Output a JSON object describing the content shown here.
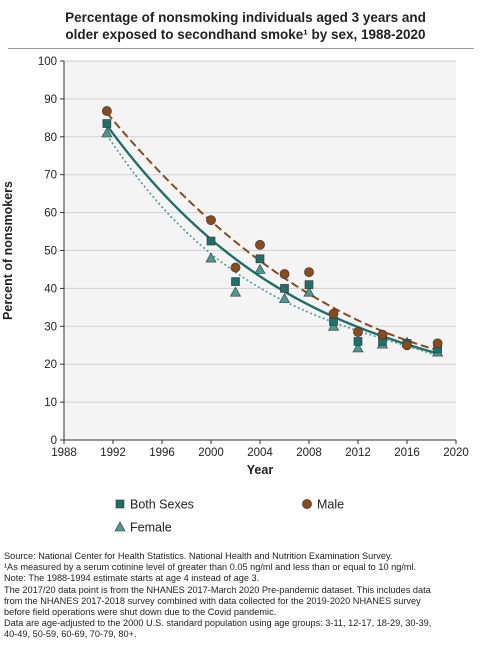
{
  "title_lines": [
    "Percentage of nonsmoking individuals aged 3 years and",
    "older exposed to secondhand smoke¹ by sex, 1988-2020"
  ],
  "chart_data": {
    "type": "scatter",
    "title": "Percentage of nonsmoking individuals aged 3 years and older exposed to secondhand smoke¹ by sex, 1988-2020",
    "xlabel": "Year",
    "ylabel": "Percent of nonsmokers",
    "xlim": [
      1988,
      2020
    ],
    "ylim": [
      0,
      100
    ],
    "x_ticks": [
      1988,
      1992,
      1996,
      2000,
      2004,
      2008,
      2012,
      2016,
      2020
    ],
    "y_ticks": [
      0,
      10,
      20,
      30,
      40,
      50,
      60,
      70,
      80,
      90,
      100
    ],
    "grid": "horizontal",
    "legend_position": "bottom",
    "x": [
      1991.5,
      2000,
      2002,
      2004,
      2006,
      2008,
      2010,
      2012,
      2014,
      2016,
      2018.5
    ],
    "series": [
      {
        "name": "Both Sexes",
        "marker": "square",
        "color": "#1f6f6a",
        "trend_line": "solid",
        "values": [
          83.5,
          52.5,
          41.8,
          47.8,
          40,
          41,
          31.3,
          26,
          26,
          25.5,
          24
        ]
      },
      {
        "name": "Male",
        "marker": "circle",
        "color": "#8b4a1c",
        "trend_line": "dashed",
        "values": [
          86.8,
          58,
          45.5,
          51.5,
          43.8,
          44.3,
          33.3,
          28.5,
          27.8,
          25,
          25.5
        ]
      },
      {
        "name": "Female",
        "marker": "triangle",
        "color": "#4a9a94",
        "trend_line": "dotted",
        "values": [
          81,
          48,
          39,
          45,
          37.3,
          39,
          30,
          24.3,
          25.3,
          25.8,
          23.2
        ]
      }
    ]
  },
  "footnotes": [
    "Source: National Center for Health Statistics. National Health and Nutrition Examination Survey.",
    "¹As measured by a serum cotinine level of greater than 0.05 ng/ml and less than or equal to 10 ng/ml.",
    "Note: The 1988-1994 estimate starts at age 4 instead of age 3.",
    "The 2017/20 data point is from the NHANES 2017-March 2020 Pre-pandemic dataset. This includes data",
    "from the NHANES 2017-2018 survey combined with data collected for the 2019-2020 NHANES survey",
    "before field operations were shut down due to the Covid pandemic.",
    "Data are age-adjusted to the 2000 U.S. standard population using age groups: 3-11, 12-17, 18-29, 30-39,",
    "40-49, 50-59, 60-69, 70-79, 80+."
  ]
}
